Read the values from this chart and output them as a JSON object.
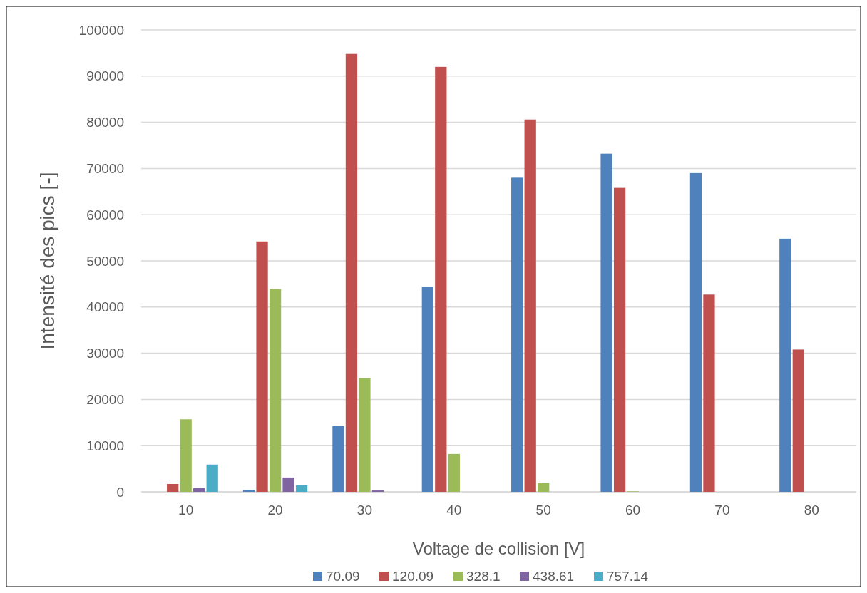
{
  "chart_data": {
    "type": "bar",
    "xlabel": "Voltage de collision [V]",
    "ylabel": "Intensité des pics [-]",
    "categories": [
      "10",
      "20",
      "30",
      "40",
      "50",
      "60",
      "70",
      "80"
    ],
    "series": [
      {
        "name": "70.09",
        "color": "#4f81bd",
        "values": [
          0,
          400,
          14200,
          44400,
          68000,
          73200,
          69000,
          54800
        ]
      },
      {
        "name": "120.09",
        "color": "#c0504d",
        "values": [
          1700,
          54200,
          94800,
          92000,
          80600,
          65800,
          42700,
          30800
        ]
      },
      {
        "name": "328.1",
        "color": "#9bbb59",
        "values": [
          15700,
          43900,
          24600,
          8200,
          1900,
          100,
          0,
          0
        ]
      },
      {
        "name": "438.61",
        "color": "#8064a2",
        "values": [
          800,
          3100,
          300,
          0,
          0,
          0,
          0,
          0
        ]
      },
      {
        "name": "757.14",
        "color": "#4bacc6",
        "values": [
          5900,
          1400,
          0,
          0,
          0,
          0,
          0,
          0
        ]
      }
    ],
    "ylim": [
      0,
      100000
    ],
    "yticks": [
      0,
      10000,
      20000,
      30000,
      40000,
      50000,
      60000,
      70000,
      80000,
      90000,
      100000
    ],
    "grid": "y",
    "legend": "bottom"
  }
}
